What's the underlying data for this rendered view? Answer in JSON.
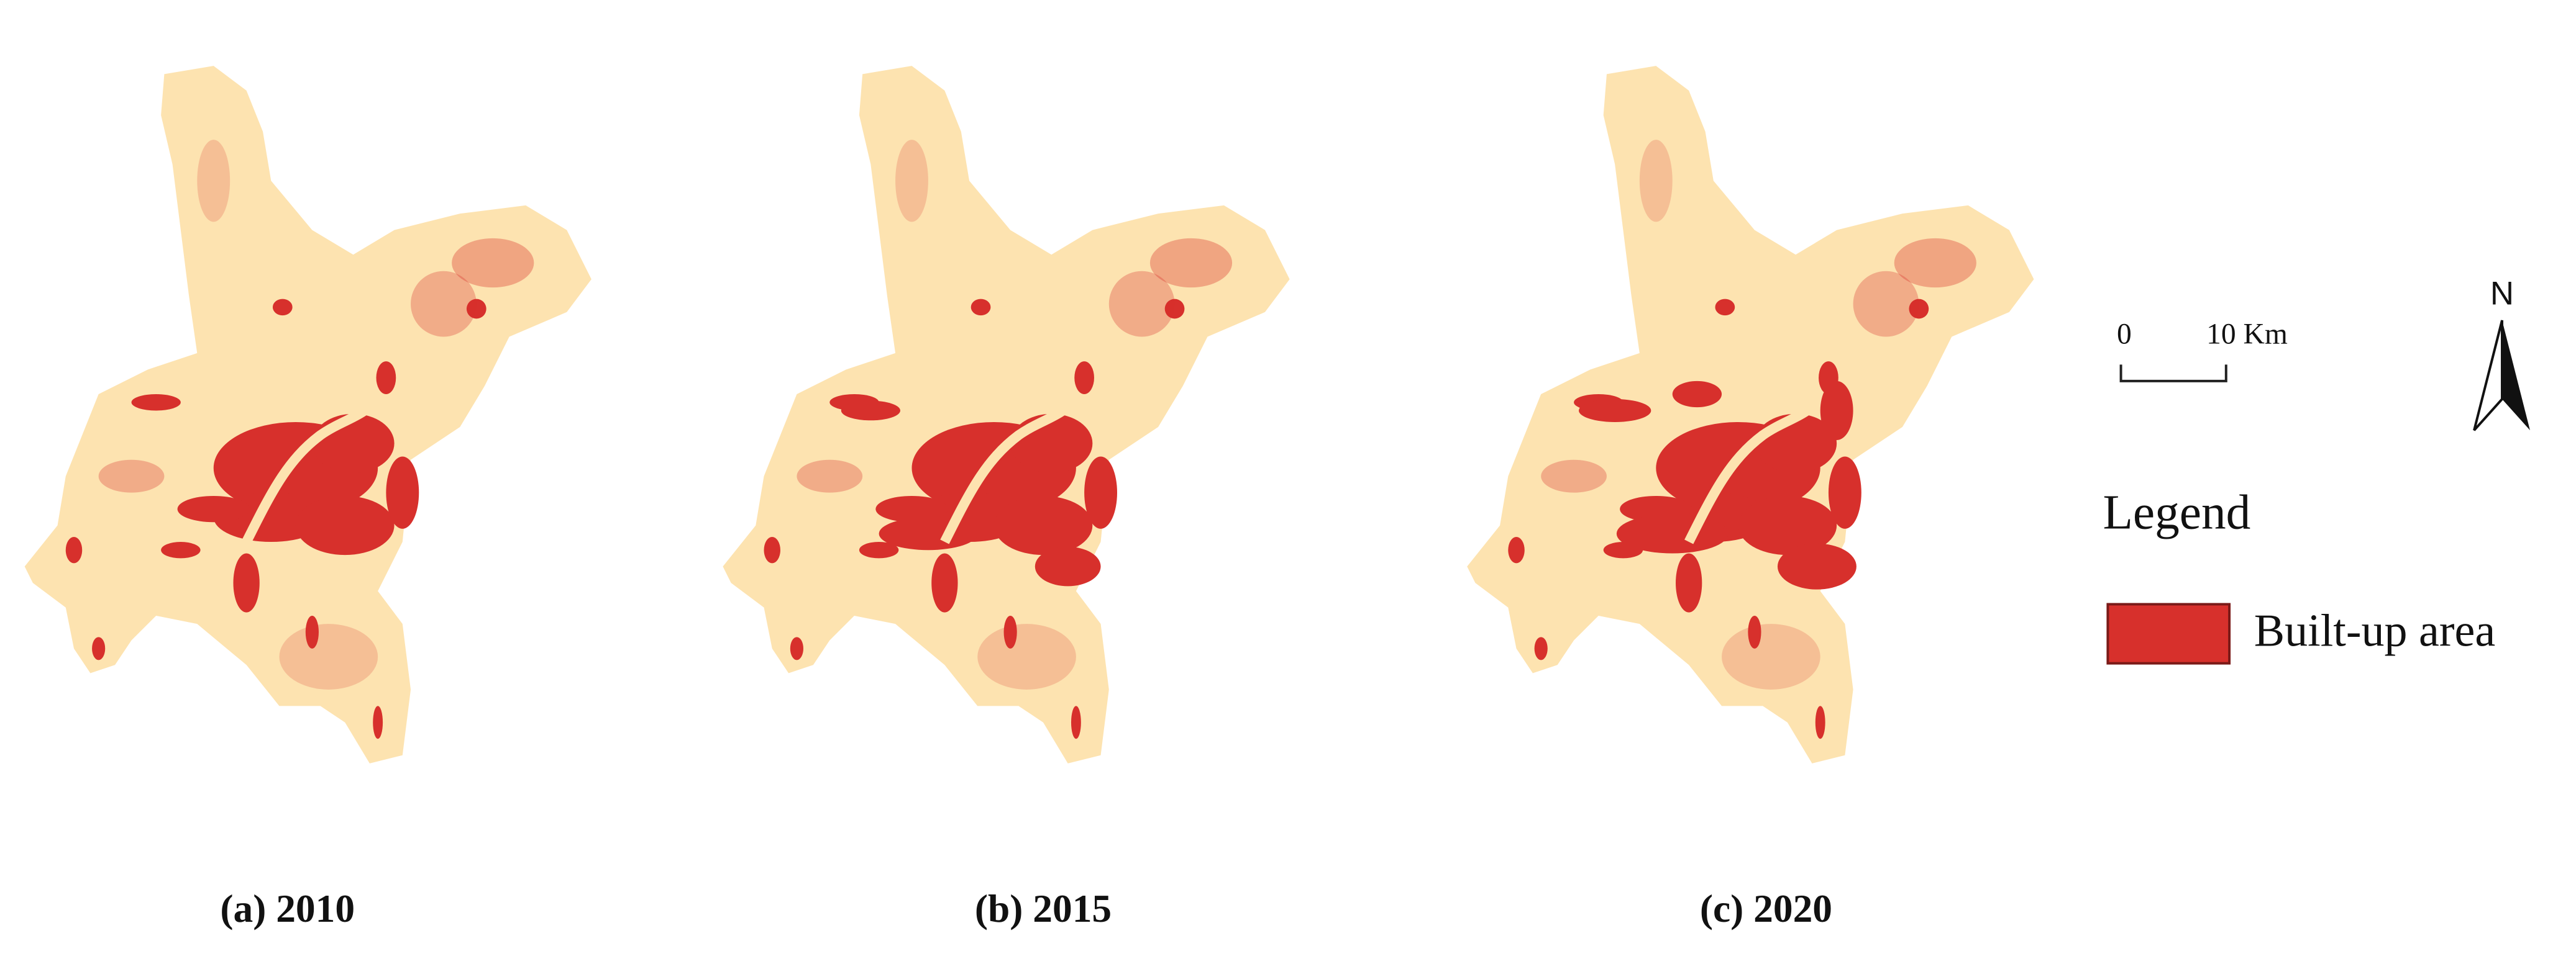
{
  "panels": [
    {
      "caption": "(a) 2010"
    },
    {
      "caption": "(b) 2015"
    },
    {
      "caption": "(c) 2020"
    }
  ],
  "scale_bar": {
    "start": "0",
    "end": "10 Km"
  },
  "north_arrow": {
    "label": "N"
  },
  "legend": {
    "title": "Legend",
    "items": [
      {
        "label": "Built-up area",
        "color": "#d7302c"
      }
    ]
  }
}
